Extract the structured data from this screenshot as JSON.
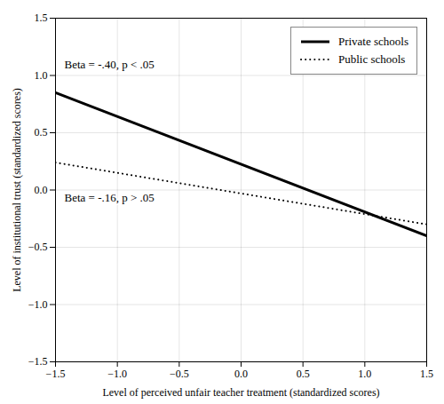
{
  "chart_data": {
    "type": "line",
    "title": "",
    "xlabel": "Level of perceived unfair teacher treatment (standardized scores)",
    "ylabel": "Level of institutional trust (standardized scores)",
    "x": [
      -1.5,
      1.5
    ],
    "series": [
      {
        "name": "Private schools",
        "color": "#000000",
        "line_style": "solid",
        "values": [
          0.85,
          -0.4
        ]
      },
      {
        "name": "Public schools",
        "color": "#000000",
        "line_style": "dotted",
        "values": [
          0.24,
          -0.3
        ]
      }
    ],
    "annotations": [
      "Beta = -.40, p < .05",
      "Beta = -.16, p > .05"
    ],
    "xlim": [
      -1.5,
      1.5
    ],
    "ylim": [
      -1.5,
      1.5
    ],
    "xticks": [
      {
        "value": -1.5,
        "label": "−1.5"
      },
      {
        "value": -1.0,
        "label": "−1.0"
      },
      {
        "value": -0.5,
        "label": "−0.5"
      },
      {
        "value": 0.0,
        "label": "0.0"
      },
      0.5,
      {
        "value": 1.0,
        "label": "1.0"
      },
      1.5
    ],
    "yticks": [
      {
        "value": -1.5,
        "label": "−1.5"
      },
      {
        "value": -1.0,
        "label": "−1.0"
      },
      {
        "value": -0.5,
        "label": "−0.5"
      },
      {
        "value": 0.0,
        "label": "0.0"
      },
      0.5,
      {
        "value": 1.0,
        "label": "1.0"
      },
      1.5
    ],
    "grid": true,
    "legend": "upper right"
  }
}
